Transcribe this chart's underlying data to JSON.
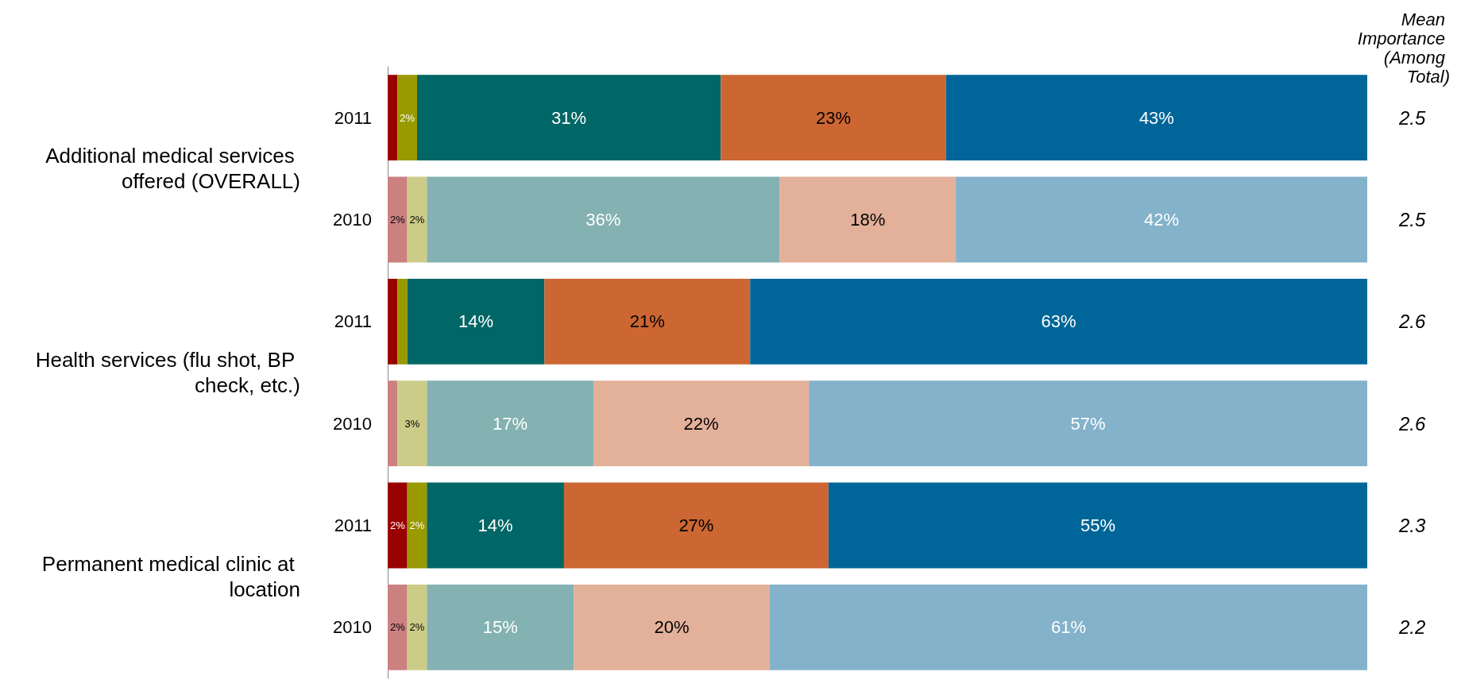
{
  "chart_data": {
    "type": "bar",
    "orientation": "horizontal",
    "stacked": true,
    "categories": [
      "2011",
      "2010",
      "2011",
      "2010",
      "2011",
      "2010"
    ],
    "y2_categories": [
      "2.5",
      "2.5",
      "2.6",
      "2.6",
      "2.3",
      "2.2"
    ],
    "y2label": "Mean Importance (Among Total)",
    "annotations": [
      "Additional medical services offered (OVERALL)",
      "Health services (flu shot, BP check, etc.)",
      "Permanent medical clinic at location"
    ],
    "series": [
      {
        "colors": [
          "#990000",
          "#cc8080",
          "#990000",
          "#cc8080",
          "#990000",
          "#cc8080"
        ],
        "values": [
          1,
          2,
          1,
          1,
          2,
          2
        ],
        "value_labels": [
          null,
          "2%",
          null,
          null,
          "2%",
          "2%"
        ]
      },
      {
        "colors": [
          "#999900",
          "#cccc88",
          "#999900",
          "#cccc88",
          "#999900",
          "#cccc88"
        ],
        "values": [
          2,
          2,
          1,
          3,
          2,
          2
        ],
        "value_labels": [
          "2%",
          "2%",
          null,
          "3%",
          "2%",
          "2%"
        ]
      },
      {
        "colors": [
          "#006666",
          "#84b1b1",
          "#006666",
          "#84b1b1",
          "#006666",
          "#84b1b1"
        ],
        "values": [
          31,
          36,
          14,
          17,
          14,
          15
        ],
        "value_labels": [
          "31%",
          "36%",
          "14%",
          "17%",
          "14%",
          "15%"
        ]
      },
      {
        "colors": [
          "#cc6633",
          "#e3b09a",
          "#cc6633",
          "#e3b09a",
          "#cc6633",
          "#e3b09a"
        ],
        "values": [
          23,
          18,
          21,
          22,
          27,
          20
        ],
        "value_labels": [
          "23%",
          "18%",
          "21%",
          "22%",
          "27%",
          "20%"
        ]
      },
      {
        "colors": [
          "#006699",
          "#84b2cb",
          "#006699",
          "#84b2cb",
          "#006699",
          "#84b2cb"
        ],
        "values": [
          43,
          42,
          63,
          57,
          55,
          61
        ],
        "value_labels": [
          "43%",
          "42%",
          "63%",
          "57%",
          "55%",
          "61%"
        ]
      }
    ]
  }
}
